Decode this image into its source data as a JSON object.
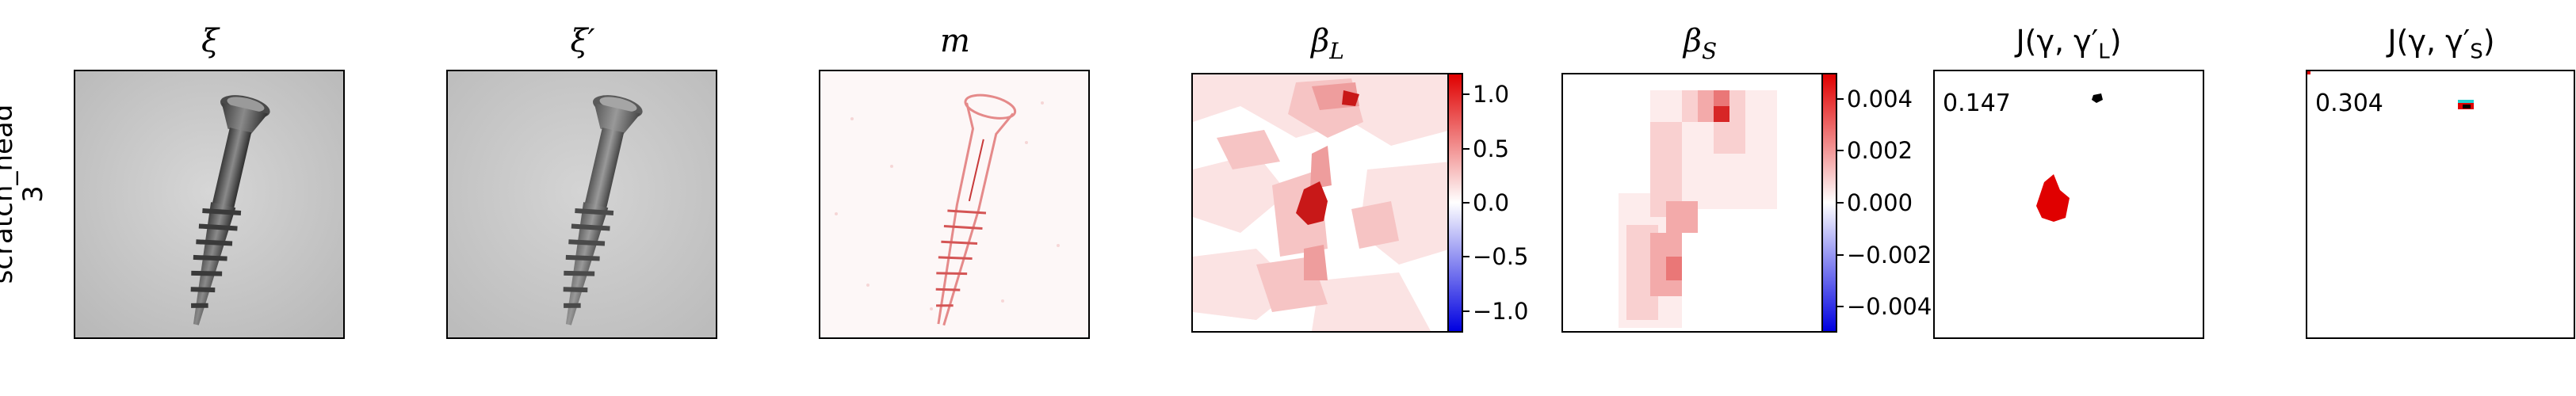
{
  "row_label": {
    "line1": "scratch_head",
    "line2": "3"
  },
  "panels": [
    {
      "title": "ξ"
    },
    {
      "title": "ξ′"
    },
    {
      "title": "m"
    },
    {
      "title": "β",
      "sub": "L"
    },
    {
      "title": "β",
      "sub": "S"
    },
    {
      "title": "J(γ, γ′",
      "sub": "L",
      "tail": ")"
    },
    {
      "title": "J(γ, γ′",
      "sub": "S",
      "tail": ")"
    }
  ],
  "colorbar_L": {
    "ticks": [
      "1.0",
      "0.5",
      "0.0",
      "−0.5",
      "−1.0"
    ],
    "range": [
      -1.2,
      1.2
    ],
    "values": [
      1.0,
      0.5,
      0.0,
      -0.5,
      -1.0
    ]
  },
  "colorbar_S": {
    "ticks": [
      "0.004",
      "0.002",
      "0.000",
      "−0.002",
      "−0.004"
    ],
    "range": [
      -0.005,
      0.005
    ],
    "values": [
      0.004,
      0.002,
      0.0,
      -0.002,
      -0.004
    ]
  },
  "scores": {
    "L": "0.147",
    "S": "0.304"
  },
  "colors": {
    "positive": "#e00000",
    "negative": "#0000e0",
    "neutral": "#ffffff",
    "image_bg": "#c8c8c8"
  }
}
